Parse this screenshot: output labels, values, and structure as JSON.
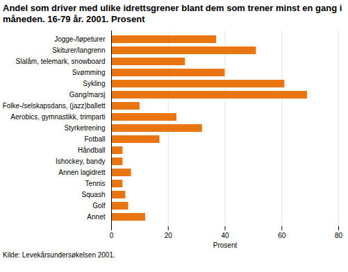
{
  "chart_data": {
    "type": "bar",
    "orientation": "horizontal",
    "title": "Andel som driver med ulike idrettsgrener blant dem som trener minst en gang i måneden. 16-79 år. 2001. Prosent",
    "caption": "Kilde: Levekårsundersøkelsen 2001.",
    "x_label": "Prosent",
    "categories": [
      "Jogge-/løpeturer",
      "Skiturer/langrenn",
      "Slalåm, telemark, snowboard",
      "Svømming",
      "Sykling",
      "Gang/marsj",
      "Folke-/selskapsdans, (jazz)ballett",
      "Aerobics, gymnastikk, trimparti",
      "Styrketrening",
      "Fotball",
      "Håndball",
      "Ishockey, bandy",
      "Annen lagidrett",
      "Tennis",
      "Squash",
      "Golf",
      "Annet"
    ],
    "values": [
      37,
      51,
      26,
      40,
      61,
      69,
      10,
      23,
      32,
      17,
      4,
      4,
      7,
      4,
      5,
      6,
      12
    ],
    "color": "#e8750f",
    "xlim": [
      0,
      80
    ],
    "xticks": [
      0,
      20,
      40,
      60,
      80
    ],
    "grid": true
  }
}
